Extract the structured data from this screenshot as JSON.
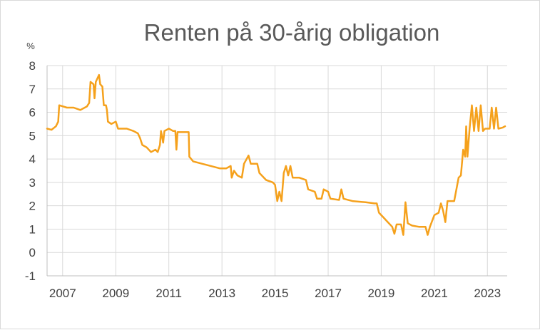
{
  "chart_data": {
    "type": "line",
    "title": "Renten på 30-årig obligation",
    "y_unit": "%",
    "ylim": [
      -1,
      8
    ],
    "y_ticks": [
      -1,
      0,
      1,
      2,
      3,
      4,
      5,
      6,
      7,
      8
    ],
    "xlim": [
      "2006-06-01",
      "2023-09-30"
    ],
    "x_ticks": [
      {
        "date": "2007-01-01",
        "label": "2007"
      },
      {
        "date": "2009-01-01",
        "label": "2009"
      },
      {
        "date": "2011-01-01",
        "label": "2011"
      },
      {
        "date": "2013-01-01",
        "label": "2013"
      },
      {
        "date": "2015-01-01",
        "label": "2015"
      },
      {
        "date": "2017-01-01",
        "label": "2017"
      },
      {
        "date": "2019-01-01",
        "label": "2019"
      },
      {
        "date": "2021-01-01",
        "label": "2021"
      },
      {
        "date": "2023-01-01",
        "label": "2023"
      }
    ],
    "grid": true,
    "legend": "none",
    "series": [
      {
        "color": "#f5a11c",
        "points": [
          [
            "2006-06-01",
            5.3
          ],
          [
            "2006-08-01",
            5.25
          ],
          [
            "2006-10-01",
            5.4
          ],
          [
            "2006-11-01",
            5.6
          ],
          [
            "2006-11-15",
            6.3
          ],
          [
            "2007-03-01",
            6.2
          ],
          [
            "2007-06-01",
            6.2
          ],
          [
            "2007-09-01",
            6.1
          ],
          [
            "2007-12-01",
            6.25
          ],
          [
            "2008-01-01",
            6.4
          ],
          [
            "2008-01-20",
            7.3
          ],
          [
            "2008-03-01",
            7.2
          ],
          [
            "2008-03-15",
            6.6
          ],
          [
            "2008-04-01",
            7.3
          ],
          [
            "2008-05-01",
            7.5
          ],
          [
            "2008-05-15",
            7.6
          ],
          [
            "2008-06-01",
            7.2
          ],
          [
            "2008-07-01",
            7.1
          ],
          [
            "2008-07-20",
            6.3
          ],
          [
            "2008-08-20",
            6.3
          ],
          [
            "2008-09-01",
            6.1
          ],
          [
            "2008-09-15",
            5.6
          ],
          [
            "2008-11-01",
            5.5
          ],
          [
            "2009-01-01",
            5.6
          ],
          [
            "2009-02-01",
            5.3
          ],
          [
            "2009-06-01",
            5.3
          ],
          [
            "2009-09-01",
            5.2
          ],
          [
            "2009-11-01",
            5.1
          ],
          [
            "2009-12-01",
            4.9
          ],
          [
            "2010-01-01",
            4.6
          ],
          [
            "2010-03-01",
            4.5
          ],
          [
            "2010-05-01",
            4.3
          ],
          [
            "2010-07-01",
            4.4
          ],
          [
            "2010-08-01",
            4.3
          ],
          [
            "2010-09-01",
            4.6
          ],
          [
            "2010-09-15",
            5.2
          ],
          [
            "2010-10-15",
            4.7
          ],
          [
            "2010-11-01",
            5.2
          ],
          [
            "2011-01-01",
            5.3
          ],
          [
            "2011-03-01",
            5.2
          ],
          [
            "2011-04-01",
            5.2
          ],
          [
            "2011-04-15",
            4.4
          ],
          [
            "2011-05-01",
            5.15
          ],
          [
            "2011-08-01",
            5.15
          ],
          [
            "2011-10-01",
            5.15
          ],
          [
            "2011-10-10",
            4.1
          ],
          [
            "2011-12-01",
            3.9
          ],
          [
            "2012-04-01",
            3.8
          ],
          [
            "2012-08-01",
            3.7
          ],
          [
            "2012-12-01",
            3.6
          ],
          [
            "2013-03-01",
            3.6
          ],
          [
            "2013-05-01",
            3.7
          ],
          [
            "2013-05-15",
            3.2
          ],
          [
            "2013-06-15",
            3.5
          ],
          [
            "2013-08-01",
            3.3
          ],
          [
            "2013-10-01",
            3.2
          ],
          [
            "2013-11-01",
            3.8
          ],
          [
            "2014-01-01",
            4.15
          ],
          [
            "2014-02-01",
            3.8
          ],
          [
            "2014-05-01",
            3.8
          ],
          [
            "2014-06-01",
            3.4
          ],
          [
            "2014-09-01",
            3.1
          ],
          [
            "2014-12-01",
            3.0
          ],
          [
            "2015-01-01",
            2.9
          ],
          [
            "2015-01-15",
            2.6
          ],
          [
            "2015-02-01",
            2.2
          ],
          [
            "2015-03-01",
            2.6
          ],
          [
            "2015-04-01",
            2.2
          ],
          [
            "2015-05-01",
            3.4
          ],
          [
            "2015-06-01",
            3.7
          ],
          [
            "2015-07-01",
            3.3
          ],
          [
            "2015-08-01",
            3.7
          ],
          [
            "2015-09-01",
            3.2
          ],
          [
            "2015-12-01",
            3.2
          ],
          [
            "2016-03-01",
            3.1
          ],
          [
            "2016-04-01",
            2.7
          ],
          [
            "2016-07-01",
            2.6
          ],
          [
            "2016-08-01",
            2.3
          ],
          [
            "2016-10-01",
            2.3
          ],
          [
            "2016-11-01",
            2.7
          ],
          [
            "2017-01-01",
            2.6
          ],
          [
            "2017-02-01",
            2.3
          ],
          [
            "2017-06-01",
            2.25
          ],
          [
            "2017-07-01",
            2.7
          ],
          [
            "2017-08-01",
            2.3
          ],
          [
            "2017-12-01",
            2.2
          ],
          [
            "2018-06-01",
            2.15
          ],
          [
            "2018-10-01",
            2.1
          ],
          [
            "2018-11-01",
            2.1
          ],
          [
            "2018-12-01",
            1.7
          ],
          [
            "2019-02-01",
            1.5
          ],
          [
            "2019-04-01",
            1.3
          ],
          [
            "2019-06-01",
            1.1
          ],
          [
            "2019-07-01",
            0.8
          ],
          [
            "2019-08-01",
            1.2
          ],
          [
            "2019-10-01",
            1.2
          ],
          [
            "2019-11-01",
            0.75
          ],
          [
            "2019-12-01",
            2.15
          ],
          [
            "2020-01-01",
            1.25
          ],
          [
            "2020-03-01",
            1.15
          ],
          [
            "2020-06-01",
            1.1
          ],
          [
            "2020-09-01",
            1.1
          ],
          [
            "2020-10-01",
            0.75
          ],
          [
            "2020-11-01",
            1.1
          ],
          [
            "2021-01-01",
            1.6
          ],
          [
            "2021-03-01",
            1.7
          ],
          [
            "2021-04-01",
            2.1
          ],
          [
            "2021-05-01",
            1.8
          ],
          [
            "2021-06-01",
            1.3
          ],
          [
            "2021-07-01",
            2.2
          ],
          [
            "2021-10-01",
            2.2
          ],
          [
            "2021-12-01",
            3.2
          ],
          [
            "2022-01-01",
            3.3
          ],
          [
            "2022-02-01",
            4.4
          ],
          [
            "2022-03-01",
            4.1
          ],
          [
            "2022-03-15",
            5.4
          ],
          [
            "2022-04-01",
            4.1
          ],
          [
            "2022-05-01",
            5.3
          ],
          [
            "2022-06-01",
            6.3
          ],
          [
            "2022-07-01",
            5.2
          ],
          [
            "2022-08-01",
            6.2
          ],
          [
            "2022-09-01",
            5.2
          ],
          [
            "2022-10-01",
            6.3
          ],
          [
            "2022-11-01",
            5.2
          ],
          [
            "2022-12-01",
            5.3
          ],
          [
            "2023-02-01",
            5.3
          ],
          [
            "2023-03-01",
            6.2
          ],
          [
            "2023-04-01",
            5.3
          ],
          [
            "2023-05-01",
            6.2
          ],
          [
            "2023-06-01",
            5.3
          ],
          [
            "2023-08-01",
            5.35
          ],
          [
            "2023-09-01",
            5.4
          ]
        ]
      }
    ]
  }
}
